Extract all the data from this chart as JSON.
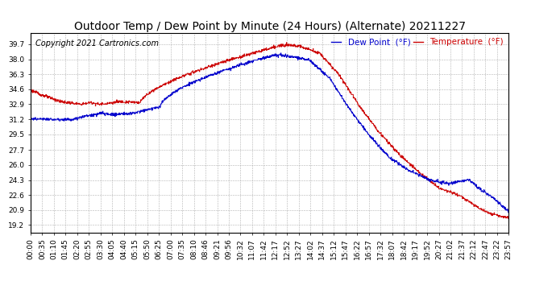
{
  "title": "Outdoor Temp / Dew Point by Minute (24 Hours) (Alternate) 20211227",
  "copyright": "Copyright 2021 Cartronics.com",
  "legend_dew": "Dew Point  (°F)",
  "legend_temp": "Temperature  (°F)",
  "dew_color": "#0000cc",
  "temp_color": "#cc0000",
  "bg_color": "#ffffff",
  "plot_bg_color": "#ffffff",
  "grid_color": "#aaaaaa",
  "yticks": [
    19.2,
    20.9,
    22.6,
    24.3,
    26.0,
    27.7,
    29.5,
    31.2,
    32.9,
    34.6,
    36.3,
    38.0,
    39.7
  ],
  "ymin": 18.35,
  "ymax": 40.95,
  "xtick_labels": [
    "00:00",
    "00:35",
    "01:10",
    "01:45",
    "02:20",
    "02:55",
    "03:30",
    "04:05",
    "04:40",
    "05:15",
    "05:50",
    "06:25",
    "07:00",
    "07:35",
    "08:10",
    "08:46",
    "09:21",
    "09:56",
    "10:32",
    "11:07",
    "11:42",
    "12:17",
    "12:52",
    "13:27",
    "14:02",
    "14:37",
    "15:12",
    "15:47",
    "16:22",
    "16:57",
    "17:32",
    "18:07",
    "18:42",
    "19:17",
    "19:52",
    "20:27",
    "21:02",
    "21:37",
    "22:12",
    "22:47",
    "23:22",
    "23:57"
  ],
  "title_fontsize": 10,
  "axis_fontsize": 6.5,
  "legend_fontsize": 7.5,
  "copyright_fontsize": 7
}
